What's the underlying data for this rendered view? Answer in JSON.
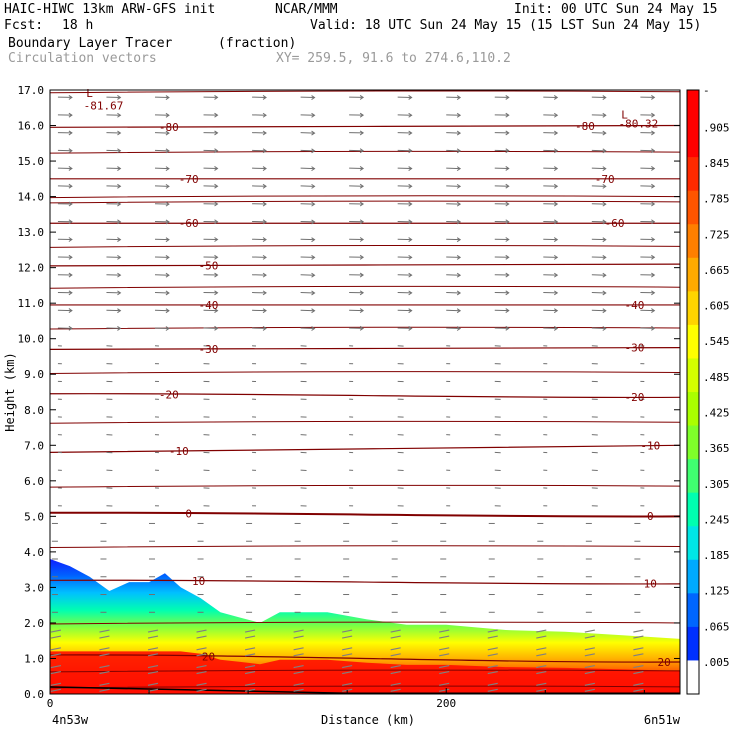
{
  "header": {
    "model_line": "HAIC-HIWC 13km ARW-GFS init",
    "org": "NCAR/MMM",
    "init": "Init: 00 UTC Sun 24 May 15",
    "fcst_label": "Fcst:",
    "fcst_value": "18 h",
    "valid": "Valid: 18 UTC Sun 24 May 15 (15 LST Sun 24 May 15)",
    "field_name": "Boundary Layer Tracer",
    "field_units": "(fraction)",
    "vector_label": "Circulation vectors",
    "xy_label": "XY= 259.5, 91.6 to 274.6,110.2"
  },
  "chart_data": {
    "type": "heatmap",
    "title": "Boundary Layer Tracer",
    "ylabel": "Height (km)",
    "xlabel": "Distance (km)",
    "ylim": [
      0,
      17
    ],
    "xlim": [
      0,
      318
    ],
    "y_ticks": [
      "0.0",
      "1.0",
      "2.0",
      "3.0",
      "4.0",
      "5.0",
      "6.0",
      "7.0",
      "8.0",
      "9.0",
      "10.0",
      "11.0",
      "12.0",
      "13.0",
      "14.0",
      "15.0",
      "16.0",
      "17.0"
    ],
    "x_ticks": [
      {
        "value": 0,
        "label": "0"
      },
      {
        "value": 200,
        "label": "200"
      }
    ],
    "x_end_labels": {
      "left": "4n53w",
      "right": "6n51w"
    },
    "colorbar_labels": [
      "-",
      ".905",
      ".845",
      ".785",
      ".725",
      ".665",
      ".605",
      ".545",
      ".485",
      ".425",
      ".365",
      ".305",
      ".245",
      ".185",
      ".125",
      ".065",
      ".005"
    ],
    "colorbar_colors": [
      "#ff0000",
      "#ff0000",
      "#ff2a00",
      "#ff5500",
      "#ff7f00",
      "#ffaa00",
      "#ffd400",
      "#ffff00",
      "#d4ff00",
      "#aaff00",
      "#7fff2a",
      "#40ff70",
      "#00ffb0",
      "#00e6e6",
      "#00aaff",
      "#0066ff",
      "#0030ff",
      "#ffffff"
    ],
    "tracer_top_km": [
      [
        0,
        3.8
      ],
      [
        10,
        3.6
      ],
      [
        20,
        3.3
      ],
      [
        30,
        2.9
      ],
      [
        40,
        3.15
      ],
      [
        50,
        3.15
      ],
      [
        58,
        3.4
      ],
      [
        66,
        3.0
      ],
      [
        76,
        2.7
      ],
      [
        86,
        2.3
      ],
      [
        96,
        2.15
      ],
      [
        106,
        2.0
      ],
      [
        116,
        2.3
      ],
      [
        128,
        2.3
      ],
      [
        140,
        2.3
      ],
      [
        160,
        2.1
      ],
      [
        180,
        1.95
      ],
      [
        200,
        1.95
      ],
      [
        230,
        1.8
      ],
      [
        260,
        1.75
      ],
      [
        290,
        1.65
      ],
      [
        318,
        1.55
      ]
    ],
    "isotherms": [
      {
        "value": "-80",
        "y0": 15.95,
        "y1": 16.0
      },
      {
        "value": "-70",
        "y0": 14.5,
        "y1": 14.5
      },
      {
        "value": "-60",
        "y0": 13.25,
        "y1": 13.25
      },
      {
        "value": "-50",
        "y0": 12.05,
        "y1": 12.1
      },
      {
        "value": "-40",
        "y0": 10.95,
        "y1": 10.95
      },
      {
        "value": "-30",
        "y0": 9.7,
        "y1": 9.75
      },
      {
        "value": "-20",
        "y0": 8.45,
        "y1": 8.35
      },
      {
        "value": "-10",
        "y0": 6.8,
        "y1": 7.0
      },
      {
        "value": "0",
        "y0": 5.1,
        "y1": 5.0
      },
      {
        "value": "10",
        "y0": 3.2,
        "y1": 3.1
      },
      {
        "value": "20",
        "y0": 1.1,
        "y1": 0.9
      }
    ],
    "extra_lines_km": [
      16.95,
      15.25,
      14.0,
      13.85,
      12.6,
      11.45,
      10.3,
      9.05,
      7.65,
      5.85,
      4.15,
      2.0,
      0.65,
      0.2
    ],
    "annotations": [
      {
        "text": "L",
        "x": 20,
        "y": 16.8
      },
      {
        "text": "-81.67",
        "x": 27,
        "y": 16.45
      },
      {
        "text": "L",
        "x": 290,
        "y": 16.2
      },
      {
        "text": "-80.32",
        "x": 297,
        "y": 15.95
      }
    ],
    "contour_label_x": [
      [
        60,
        "-80"
      ],
      [
        270,
        "-80"
      ],
      [
        70,
        "-70"
      ],
      [
        280,
        "-70"
      ],
      [
        70,
        "-60"
      ],
      [
        285,
        "-60"
      ],
      [
        80,
        "-50"
      ],
      [
        80,
        "-40"
      ],
      [
        295,
        "-40"
      ],
      [
        80,
        "-30"
      ],
      [
        295,
        "-30"
      ],
      [
        60,
        "-20"
      ],
      [
        295,
        "-20"
      ],
      [
        65,
        "-10"
      ],
      [
        303,
        "-10"
      ],
      [
        70,
        "0"
      ],
      [
        303,
        "0"
      ],
      [
        75,
        "10"
      ],
      [
        303,
        "10"
      ],
      [
        80,
        "20"
      ],
      [
        310,
        "20"
      ]
    ],
    "grid": false,
    "legend": "colorbar-right"
  }
}
